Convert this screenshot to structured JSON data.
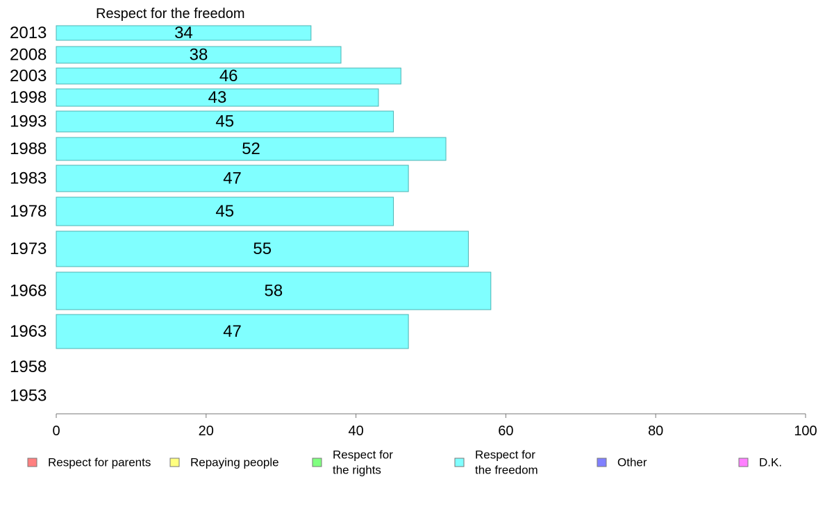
{
  "chart_data": {
    "type": "bar",
    "orientation": "horizontal",
    "title": "Respect for the freedom",
    "categories": [
      "2013",
      "2008",
      "2003",
      "1998",
      "1993",
      "1988",
      "1983",
      "1978",
      "1973",
      "1968",
      "1963",
      "1958",
      "1953"
    ],
    "values": [
      34,
      38,
      46,
      43,
      45,
      52,
      47,
      45,
      55,
      58,
      47,
      null,
      null
    ],
    "value_labels": [
      "34",
      "38",
      "46",
      "43",
      "45",
      "52",
      "47",
      "45",
      "55",
      "58",
      "47",
      "",
      ""
    ],
    "xlim": [
      0,
      100
    ],
    "x_ticks": [
      "0",
      "20",
      "40",
      "60",
      "80",
      "100"
    ],
    "grid": false,
    "bar_color": "#80ffff",
    "bar_edge_color": "#4cb3b3",
    "legend_position": "bottom",
    "legend": [
      {
        "lines": [
          "Respect for parents"
        ],
        "color": "#ff8080"
      },
      {
        "lines": [
          "Repaying people"
        ],
        "color": "#ffff80"
      },
      {
        "lines": [
          "Respect for",
          "the rights"
        ],
        "color": "#80ff80"
      },
      {
        "lines": [
          "Respect for",
          "the freedom"
        ],
        "color": "#80ffff"
      },
      {
        "lines": [
          "Other"
        ],
        "color": "#8080ff"
      },
      {
        "lines": [
          "D.K."
        ],
        "color": "#ff80ff"
      }
    ]
  }
}
